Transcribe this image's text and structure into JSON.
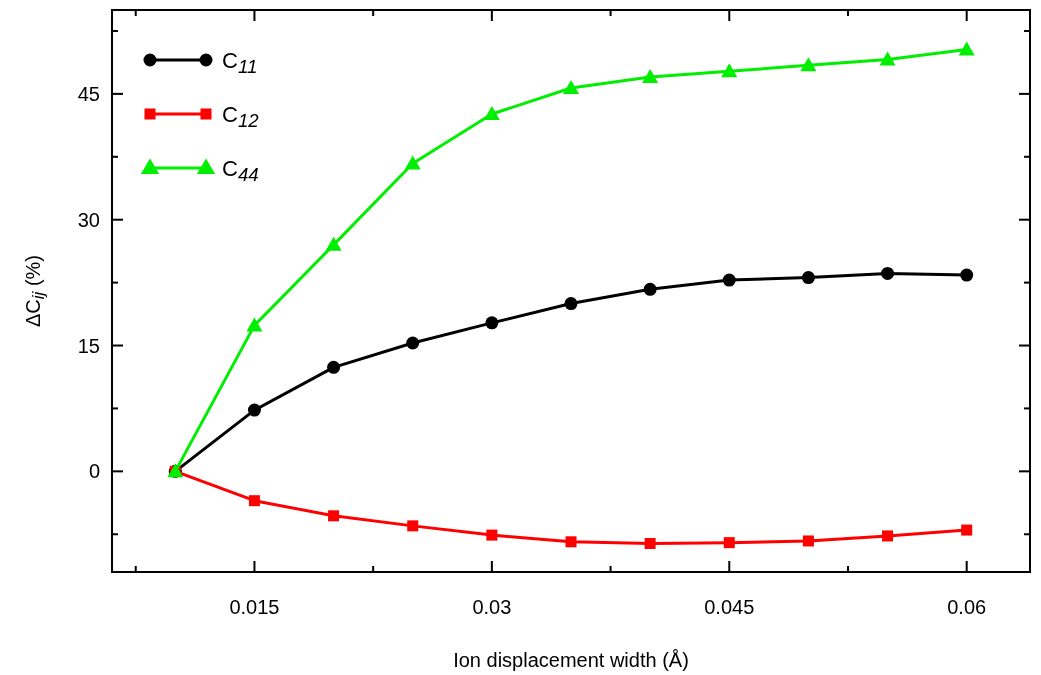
{
  "chart_data": {
    "type": "line",
    "xlabel": "Ion displacement width (Å)",
    "ylabel": "ΔC$_{ij}$ (%)",
    "x": [
      0.01,
      0.015,
      0.02,
      0.025,
      0.03,
      0.035,
      0.04,
      0.045,
      0.05,
      0.055,
      0.06
    ],
    "series": [
      {
        "name": "C$_{11}$",
        "color": "#000000",
        "marker": "circle",
        "values": [
          0,
          7.3,
          12.4,
          15.3,
          17.7,
          20.0,
          21.7,
          22.8,
          23.1,
          23.6,
          23.4
        ]
      },
      {
        "name": "C$_{12}$",
        "color": "#ff0000",
        "marker": "square",
        "values": [
          0,
          -3.5,
          -5.3,
          -6.5,
          -7.6,
          -8.4,
          -8.6,
          -8.5,
          -8.3,
          -7.7,
          -7.0
        ]
      },
      {
        "name": "C$_{44}$",
        "color": "#00ee00",
        "marker": "triangle",
        "values": [
          0,
          17.4,
          27.0,
          36.7,
          42.6,
          45.7,
          47.0,
          47.7,
          48.4,
          49.1,
          50.3
        ]
      }
    ],
    "xlim": [
      0.006,
      0.064
    ],
    "xticks": [
      {
        "value": 0.0075,
        "label": null
      },
      0.015,
      {
        "value": 0.0225,
        "label": null
      },
      0.03,
      {
        "value": 0.0375,
        "label": null
      },
      0.045,
      {
        "value": 0.0525,
        "label": null
      },
      0.06
    ],
    "ylim": [
      -12,
      55
    ],
    "yticks": [
      {
        "value": -7.5,
        "label": null
      },
      0,
      {
        "value": 7.5,
        "label": null
      },
      15,
      {
        "value": 22.5,
        "label": null
      },
      30,
      {
        "value": 37.5,
        "label": null
      },
      45,
      {
        "value": 52.5,
        "label": null
      }
    ],
    "legend": "top left",
    "grid": false,
    "line_style": "solid"
  }
}
